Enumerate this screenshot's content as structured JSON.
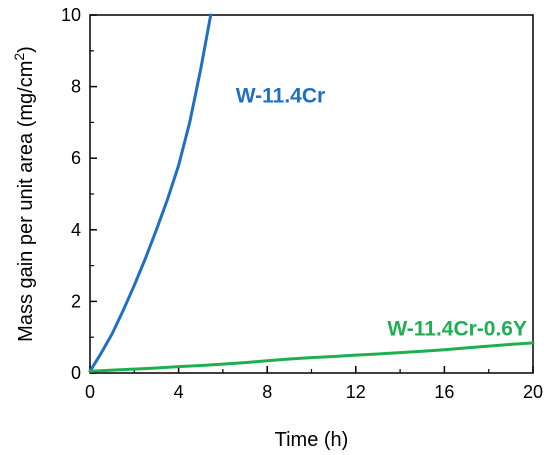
{
  "chart_data": {
    "type": "line",
    "title": "",
    "xlabel": "Time (h)",
    "ylabel_main": "Mass gain per unit area (mg/cm",
    "ylabel_sup": "2",
    "ylabel_close": ")",
    "xlim": [
      0,
      20
    ],
    "ylim": [
      0,
      10
    ],
    "xticks": [
      0,
      4,
      8,
      12,
      16,
      20
    ],
    "yticks": [
      0,
      2,
      4,
      6,
      8,
      10
    ],
    "grid": false,
    "legend": "none",
    "series": [
      {
        "name": "W-11.4Cr",
        "color": "#1f6fc4",
        "x": [
          0,
          0.5,
          1,
          1.5,
          2,
          2.5,
          3,
          3.5,
          4,
          4.5,
          5,
          5.45
        ],
        "y": [
          0.05,
          0.55,
          1.1,
          1.75,
          2.45,
          3.2,
          4.0,
          4.85,
          5.8,
          7.0,
          8.5,
          10.0
        ]
      },
      {
        "name": "W-11.4Cr-0.6Y",
        "color": "#1eb050",
        "x": [
          0,
          1,
          2,
          3,
          4,
          5,
          6,
          7,
          8,
          9,
          10,
          11,
          12,
          13,
          14,
          15,
          16,
          17,
          18,
          19,
          20
        ],
        "y": [
          0.05,
          0.08,
          0.11,
          0.14,
          0.18,
          0.21,
          0.25,
          0.29,
          0.34,
          0.39,
          0.43,
          0.46,
          0.5,
          0.53,
          0.57,
          0.61,
          0.65,
          0.7,
          0.75,
          0.8,
          0.84
        ]
      }
    ]
  }
}
